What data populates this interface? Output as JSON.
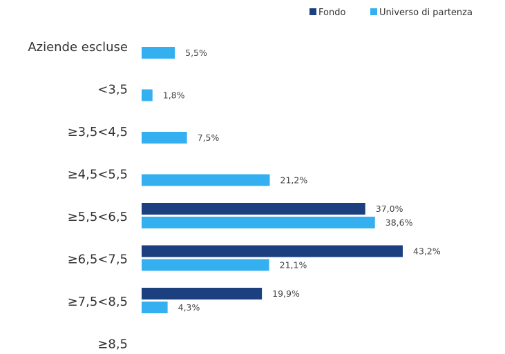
{
  "chart_data": {
    "type": "bar",
    "orientation": "horizontal",
    "categories": [
      "Aziende escluse",
      "<3,5",
      "≥3,5<4,5",
      "≥4,5<5,5",
      "≥5,5<6,5",
      "≥6,5<7,5",
      "≥7,5<8,5",
      "≥8,5"
    ],
    "series": [
      {
        "name": "Fondo",
        "color": "#1b3f7f",
        "values": [
          null,
          null,
          null,
          null,
          37.0,
          43.2,
          19.9,
          null
        ]
      },
      {
        "name": "Universo di partenza",
        "color": "#34b0f0",
        "values": [
          5.5,
          1.8,
          7.5,
          21.2,
          38.6,
          21.1,
          4.3,
          null
        ]
      }
    ],
    "value_format": "percent_comma_1dp",
    "xlim": [
      0,
      50
    ],
    "grid": false,
    "legend_position": "top-right"
  }
}
